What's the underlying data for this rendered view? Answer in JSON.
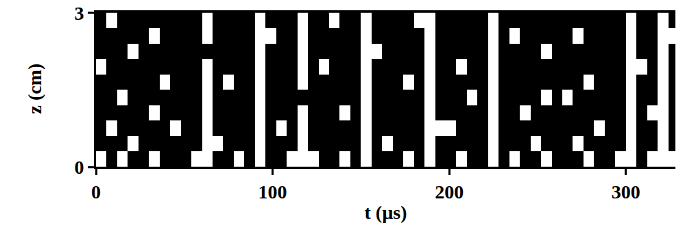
{
  "chart_data": {
    "type": "heatmap",
    "xlabel": "t (µs)",
    "ylabel": "z (cm)",
    "xlim": [
      0,
      328
    ],
    "ylim": [
      0,
      3.05
    ],
    "xticks": [
      0,
      100,
      200,
      300
    ],
    "yticks": [
      0,
      3
    ],
    "colors": [
      "#000000",
      "#ffffff"
    ],
    "grid": false,
    "x": [
      3,
      9,
      15,
      21,
      27,
      33,
      39,
      45,
      51,
      57,
      63,
      69,
      75,
      81,
      87,
      93,
      99,
      105,
      111,
      117,
      123,
      129,
      135,
      141,
      147,
      153,
      159,
      165,
      171,
      177,
      183,
      189,
      195,
      201,
      207,
      213,
      219,
      225,
      231,
      237,
      243,
      249,
      255,
      261,
      267,
      273,
      279,
      285,
      291,
      297,
      303,
      309,
      315,
      321,
      327
    ],
    "y": [
      0.15,
      0.45,
      0.75,
      1.05,
      1.35,
      1.65,
      1.95,
      2.25,
      2.55,
      2.85
    ],
    "cells": [
      [
        1,
        0,
        1,
        0,
        0,
        1,
        0,
        0,
        0,
        1,
        1,
        0,
        0,
        1,
        0,
        1,
        0,
        0,
        1,
        1,
        1,
        0,
        0,
        1,
        0,
        1,
        0,
        0,
        0,
        1,
        0,
        1,
        0,
        0,
        1,
        0,
        0,
        1,
        0,
        1,
        0,
        0,
        1,
        0,
        0,
        0,
        1,
        0,
        0,
        1,
        1,
        0,
        1,
        1,
        1
      ],
      [
        0,
        0,
        0,
        1,
        0,
        0,
        0,
        0,
        0,
        0,
        1,
        1,
        0,
        0,
        0,
        1,
        0,
        0,
        0,
        1,
        0,
        0,
        0,
        0,
        0,
        1,
        0,
        1,
        0,
        0,
        0,
        1,
        0,
        0,
        0,
        0,
        0,
        1,
        0,
        0,
        0,
        1,
        0,
        0,
        0,
        1,
        0,
        0,
        0,
        0,
        1,
        0,
        0,
        1,
        0
      ],
      [
        0,
        1,
        0,
        0,
        0,
        0,
        0,
        1,
        0,
        0,
        1,
        0,
        0,
        0,
        0,
        1,
        0,
        1,
        0,
        1,
        0,
        0,
        0,
        0,
        0,
        1,
        0,
        0,
        0,
        0,
        0,
        1,
        1,
        1,
        0,
        0,
        0,
        1,
        0,
        0,
        0,
        0,
        0,
        0,
        0,
        0,
        0,
        1,
        0,
        0,
        1,
        0,
        0,
        1,
        0
      ],
      [
        0,
        0,
        0,
        0,
        0,
        1,
        0,
        0,
        0,
        0,
        1,
        0,
        0,
        0,
        0,
        1,
        0,
        0,
        0,
        1,
        0,
        0,
        0,
        1,
        0,
        1,
        0,
        0,
        0,
        0,
        0,
        1,
        0,
        0,
        0,
        0,
        0,
        1,
        0,
        0,
        1,
        0,
        0,
        0,
        0,
        0,
        0,
        0,
        0,
        0,
        1,
        0,
        1,
        1,
        0
      ],
      [
        0,
        0,
        1,
        0,
        0,
        0,
        0,
        0,
        0,
        0,
        1,
        0,
        0,
        0,
        0,
        1,
        0,
        0,
        0,
        0,
        0,
        0,
        0,
        0,
        0,
        1,
        0,
        0,
        0,
        0,
        0,
        1,
        0,
        0,
        0,
        1,
        0,
        1,
        0,
        0,
        0,
        0,
        1,
        0,
        1,
        0,
        0,
        0,
        0,
        0,
        1,
        0,
        0,
        1,
        0
      ],
      [
        0,
        0,
        0,
        0,
        0,
        0,
        1,
        0,
        0,
        0,
        1,
        0,
        1,
        0,
        0,
        1,
        0,
        0,
        0,
        1,
        0,
        0,
        0,
        0,
        0,
        1,
        0,
        0,
        0,
        1,
        0,
        1,
        0,
        0,
        0,
        0,
        0,
        1,
        0,
        0,
        0,
        0,
        0,
        0,
        0,
        0,
        1,
        0,
        0,
        0,
        1,
        0,
        0,
        1,
        0
      ],
      [
        1,
        0,
        0,
        0,
        0,
        0,
        0,
        0,
        0,
        0,
        1,
        0,
        0,
        0,
        0,
        1,
        0,
        0,
        0,
        1,
        0,
        1,
        0,
        0,
        0,
        1,
        0,
        0,
        0,
        0,
        0,
        1,
        0,
        0,
        1,
        0,
        0,
        1,
        0,
        0,
        0,
        0,
        0,
        0,
        0,
        0,
        0,
        0,
        0,
        0,
        1,
        1,
        0,
        1,
        0
      ],
      [
        0,
        0,
        0,
        1,
        0,
        0,
        0,
        0,
        0,
        0,
        0,
        0,
        0,
        0,
        0,
        1,
        0,
        0,
        0,
        1,
        0,
        0,
        0,
        0,
        0,
        1,
        1,
        0,
        0,
        0,
        0,
        1,
        0,
        0,
        0,
        0,
        0,
        1,
        0,
        0,
        0,
        0,
        1,
        0,
        0,
        0,
        0,
        0,
        0,
        0,
        1,
        0,
        0,
        1,
        0
      ],
      [
        0,
        0,
        0,
        0,
        0,
        1,
        0,
        0,
        0,
        0,
        1,
        0,
        0,
        0,
        0,
        1,
        1,
        0,
        0,
        1,
        0,
        0,
        0,
        0,
        0,
        1,
        0,
        0,
        0,
        0,
        0,
        1,
        0,
        0,
        0,
        0,
        0,
        1,
        0,
        1,
        0,
        0,
        0,
        0,
        0,
        1,
        0,
        0,
        0,
        0,
        1,
        0,
        0,
        1,
        1
      ],
      [
        0,
        1,
        0,
        0,
        0,
        0,
        0,
        0,
        0,
        0,
        1,
        0,
        0,
        0,
        0,
        1,
        0,
        0,
        0,
        1,
        0,
        0,
        1,
        0,
        0,
        1,
        0,
        0,
        0,
        0,
        1,
        1,
        0,
        0,
        0,
        0,
        0,
        1,
        0,
        0,
        0,
        0,
        0,
        0,
        0,
        0,
        0,
        0,
        0,
        0,
        1,
        0,
        0,
        1,
        0
      ]
    ]
  }
}
